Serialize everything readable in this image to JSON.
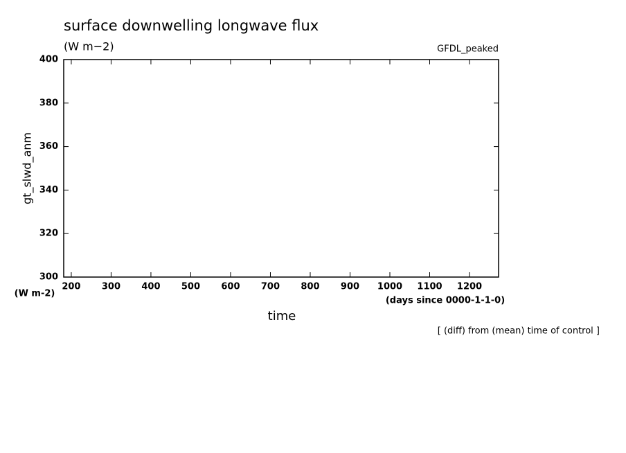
{
  "chart_data": {
    "type": "line",
    "title": "surface downwelling longwave flux",
    "subtitle": "(W m−2)",
    "annotation": "GFDL_peaked",
    "y_label": "gt_slwd_anm",
    "y_units": "(W m-2)",
    "x_units": "(days since 0000-1-1-0)",
    "x_label": "time",
    "note": "[ (diff) from (mean) time of control ]",
    "xlim": [
      181,
      1273
    ],
    "xticks": [
      200,
      300,
      400,
      500,
      600,
      700,
      800,
      900,
      1000,
      1100,
      1200
    ],
    "ylim": [
      300,
      400
    ],
    "yticks": [
      300,
      320,
      340,
      360,
      380,
      400
    ],
    "grid": false
  }
}
